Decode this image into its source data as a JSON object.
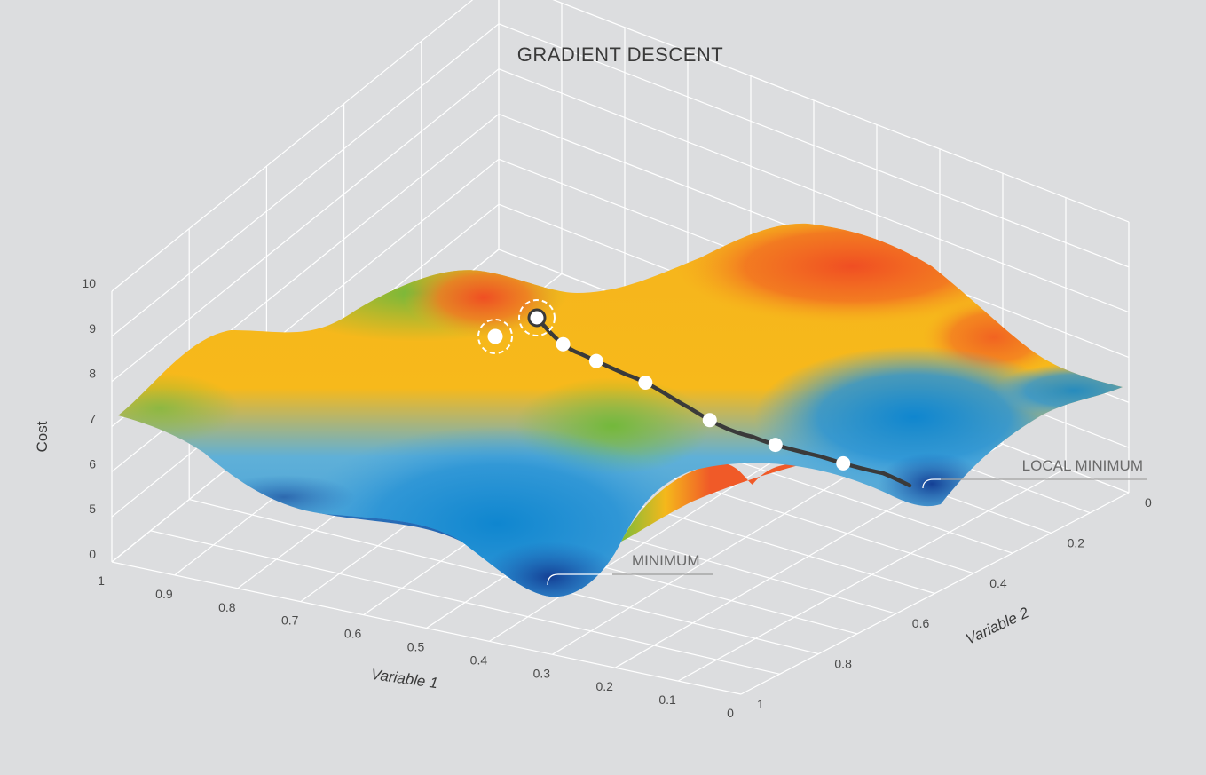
{
  "chart_data": {
    "type": "surface",
    "title": "GRADIENT DESCENT",
    "zlabel": "Cost",
    "xlabel": "Variable 1",
    "ylabel": "Variable 2",
    "z_ticks": [
      "0",
      "5",
      "6",
      "7",
      "8",
      "9",
      "10"
    ],
    "x_ticks": [
      "1",
      "0.9",
      "0.8",
      "0.7",
      "0.6",
      "0.5",
      "0.4",
      "0.3",
      "0.2",
      "0.1",
      "0"
    ],
    "y_ticks": [
      "0",
      "0.2",
      "0.4",
      "0.6",
      "0.8",
      "1"
    ],
    "annotations": {
      "local_minimum": "LOCAL MINIMUM",
      "minimum": "MINIMUM"
    },
    "descent_path_points": 8,
    "colors": {
      "high": "#f05a28",
      "mid": "#f7b61a",
      "low_mid": "#7dbb3a",
      "low": "#3c9fdc",
      "deep": "#153f95",
      "path": "#3a3a3a"
    }
  }
}
